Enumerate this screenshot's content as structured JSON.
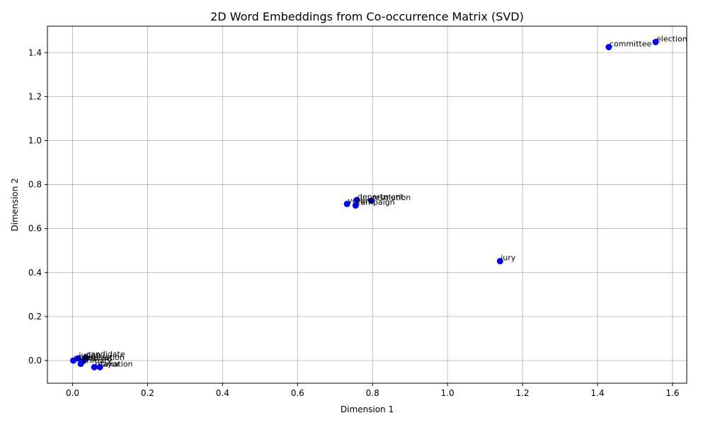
{
  "chart_data": {
    "type": "scatter",
    "title": "2D Word Embeddings from Co-occurrence Matrix (SVD)",
    "xlabel": "Dimension 1",
    "ylabel": "Dimension 2",
    "xlim": [
      -0.067,
      1.638
    ],
    "ylim": [
      -0.103,
      1.52
    ],
    "xticks": [
      0.0,
      0.2,
      0.4,
      0.6,
      0.8,
      1.0,
      1.2,
      1.4,
      1.6
    ],
    "yticks": [
      0.0,
      0.2,
      0.4,
      0.6,
      0.8,
      1.0,
      1.2,
      1.4
    ],
    "xtick_labels": [
      "0.0",
      "0.2",
      "0.4",
      "0.6",
      "0.8",
      "1.0",
      "1.2",
      "1.4",
      "1.6"
    ],
    "ytick_labels": [
      "0.0",
      "0.2",
      "0.4",
      "0.6",
      "0.8",
      "1.0",
      "1.2",
      "1.4"
    ],
    "grid": true,
    "marker_color": "#0000ff",
    "points": [
      {
        "label": "election",
        "x": 1.555,
        "y": 1.448
      },
      {
        "label": "committee",
        "x": 1.43,
        "y": 1.425
      },
      {
        "label": "department",
        "x": 0.758,
        "y": 0.73
      },
      {
        "label": "resolution",
        "x": 0.797,
        "y": 0.727
      },
      {
        "label": "voters",
        "x": 0.732,
        "y": 0.712
      },
      {
        "label": "campaign",
        "x": 0.755,
        "y": 0.705
      },
      {
        "label": "jury",
        "x": 1.14,
        "y": 0.452
      },
      {
        "label": "candidate",
        "x": 0.035,
        "y": 0.014
      },
      {
        "label": "judge",
        "x": 0.015,
        "y": 0.01
      },
      {
        "label": "legislation",
        "x": 0.03,
        "y": 0.0
      },
      {
        "label": "reforms",
        "x": 0.025,
        "y": -0.005
      },
      {
        "label": "primary",
        "x": 0.022,
        "y": -0.015
      },
      {
        "label": "mayor",
        "x": 0.058,
        "y": -0.03
      },
      {
        "label": "taxation",
        "x": 0.073,
        "y": -0.03
      },
      {
        "label": "vote",
        "x": 0.002,
        "y": 0.0
      }
    ]
  }
}
